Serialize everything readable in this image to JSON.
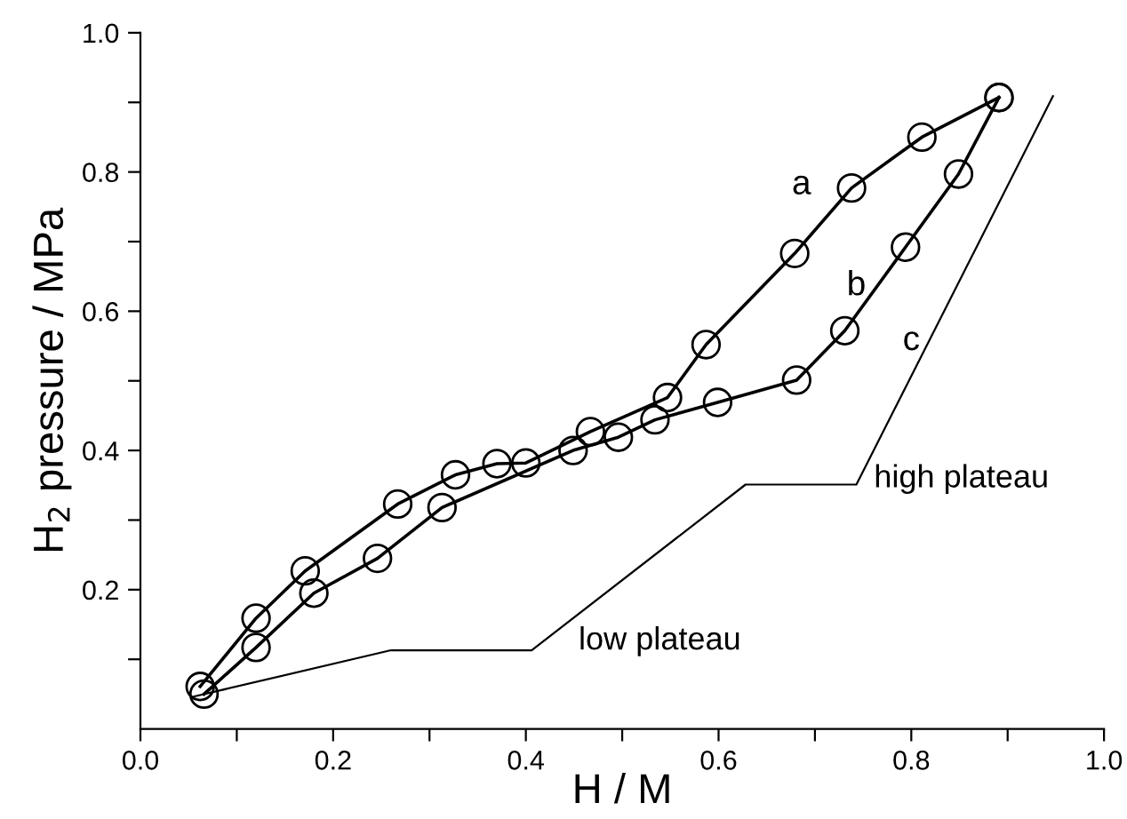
{
  "chart_data": {
    "type": "line",
    "xlabel": "H / M",
    "ylabel": "H$_{2}$ pressure / MPa",
    "xlim": [
      0.0,
      1.0
    ],
    "ylim": [
      0.0,
      1.0
    ],
    "xticks": [
      {
        "value": 0.0,
        "label": "0.0"
      },
      {
        "value": 0.1,
        "label": null
      },
      0.2,
      {
        "value": 0.3,
        "label": null
      },
      0.4,
      {
        "value": 0.5,
        "label": null
      },
      0.6,
      {
        "value": 0.7,
        "label": null
      },
      0.8,
      {
        "value": 0.9,
        "label": null
      },
      {
        "value": 1.0,
        "label": "1.0"
      }
    ],
    "yticks": [
      {
        "value": 0.1,
        "label": null
      },
      0.2,
      {
        "value": 0.3,
        "label": null
      },
      0.4,
      {
        "value": 0.5,
        "label": null
      },
      0.6,
      {
        "value": 0.7,
        "label": null
      },
      0.8,
      {
        "value": 0.9,
        "label": null
      },
      {
        "value": 1.0,
        "label": "1.0"
      }
    ],
    "grid": false,
    "legend": false,
    "series": [
      {
        "name": "a",
        "color": "#000000",
        "marker": "circle",
        "x": [
          0.062,
          0.12,
          0.171,
          0.267,
          0.327,
          0.37,
          0.4,
          0.467,
          0.547,
          0.587,
          0.679,
          0.738,
          0.811,
          0.891
        ],
        "values": [
          0.061,
          0.159,
          0.227,
          0.323,
          0.365,
          0.381,
          0.382,
          0.427,
          0.476,
          0.552,
          0.683,
          0.777,
          0.85,
          0.907
        ]
      },
      {
        "name": "b",
        "color": "#000000",
        "marker": "circle",
        "x": [
          0.066,
          0.12,
          0.18,
          0.246,
          0.313,
          0.449,
          0.496,
          0.534,
          0.599,
          0.681,
          0.731,
          0.794,
          0.849,
          0.891
        ],
        "values": [
          0.05,
          0.117,
          0.195,
          0.245,
          0.318,
          0.4,
          0.419,
          0.444,
          0.469,
          0.501,
          0.572,
          0.692,
          0.797,
          0.907
        ]
      },
      {
        "name": "c",
        "color": "#000000",
        "marker": "none",
        "x": [
          0.054,
          0.26,
          0.406,
          0.628,
          0.743,
          0.947
        ],
        "values": [
          0.046,
          0.113,
          0.113,
          0.351,
          0.351,
          0.909
        ]
      }
    ],
    "annotations": [
      "high plateau",
      "low plateau"
    ]
  }
}
